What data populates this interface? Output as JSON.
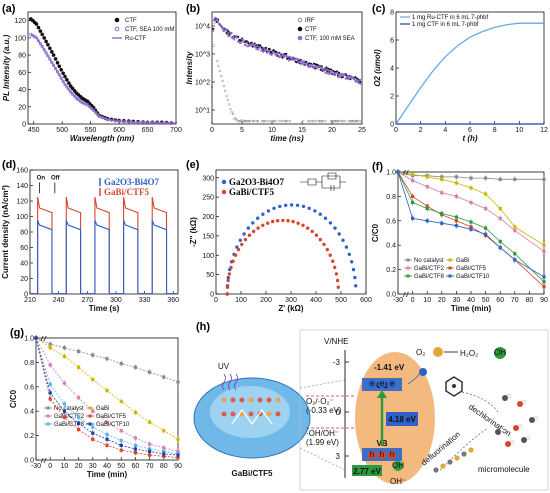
{
  "colors": {
    "black": "#111111",
    "blue": "#2f61c9",
    "lightblue": "#6aa8e6",
    "purple": "#8f6bd1",
    "red": "#d9452c",
    "orange": "#e8a33a",
    "yellow": "#c9b800",
    "green": "#2e9a3e",
    "gray": "#888888",
    "pink": "#d77db0",
    "cyan": "#5bb6e8",
    "darkblue": "#1f3fa6",
    "teal": "#2a8f7f"
  },
  "chart_data": [
    {
      "panel": "(a)",
      "type": "line",
      "ylabel": "PL Intensity (a.u.)",
      "xlabel": "Wavelength (nm)",
      "xlim": [
        440,
        700
      ],
      "ylim": [
        0,
        130
      ],
      "xticks": [
        "450",
        "500",
        "550",
        "600",
        "650",
        "700"
      ],
      "yticks": [
        "0",
        "20",
        "40",
        "60",
        "80",
        "100",
        "120"
      ],
      "series": [
        {
          "name": "CTF",
          "style": "marker",
          "color": "black",
          "x": [
            445,
            455,
            465,
            475,
            485,
            495,
            505,
            515,
            525,
            535,
            545,
            555,
            565,
            580,
            600,
            625,
            650,
            675,
            700
          ],
          "y": [
            122,
            116,
            104,
            92,
            80,
            67,
            55,
            44,
            36,
            30,
            26,
            19,
            10,
            6,
            4,
            3,
            2,
            2,
            1
          ]
        },
        {
          "name": "CTF, SEA 100 mM",
          "style": "marker-light",
          "color": "purple",
          "x": [
            445,
            455,
            465,
            475,
            485,
            495,
            505,
            515,
            525,
            535,
            545,
            555,
            565,
            580,
            600,
            625,
            650,
            675,
            700
          ],
          "y": [
            104,
            100,
            90,
            79,
            68,
            57,
            46,
            37,
            30,
            25,
            22,
            16,
            9,
            5,
            3,
            2,
            2,
            1,
            1
          ]
        },
        {
          "name": "Ru-CTF",
          "style": "line",
          "color": "purple",
          "x": [
            445,
            455,
            465,
            475,
            485,
            495,
            505,
            515,
            525,
            535,
            545,
            555,
            565,
            580,
            600,
            625,
            650,
            675,
            700
          ],
          "y": [
            104,
            100,
            90,
            79,
            68,
            57,
            46,
            37,
            30,
            25,
            22,
            16,
            9,
            5,
            3,
            2,
            2,
            1,
            1
          ]
        }
      ]
    },
    {
      "panel": "(b)",
      "type": "scatter",
      "ylabel": "Intensity",
      "xlabel": "time (ns)",
      "xlim": [
        0,
        25
      ],
      "log_y": true,
      "xticks": [
        "0",
        "5",
        "10",
        "15",
        "20",
        "25"
      ],
      "yticks": [
        "10^4",
        "10^3",
        "10^2",
        "10^1"
      ],
      "series": [
        {
          "name": "IRF",
          "color": "gray"
        },
        {
          "name": "CTF",
          "color": "black"
        },
        {
          "name": "CTF, 100 mM SEA",
          "color": "purple"
        }
      ]
    },
    {
      "panel": "(c)",
      "type": "line",
      "ylabel": "O2 (umol)",
      "xlabel": "t (h)",
      "xlim": [
        0,
        12
      ],
      "ylim": [
        0,
        8
      ],
      "xticks": [
        "0",
        "2",
        "4",
        "6",
        "8",
        "10",
        "12"
      ],
      "yticks": [
        "0",
        "2",
        "4",
        "6",
        "8"
      ],
      "series": [
        {
          "name": "1 mg Ru-CTF in 6 mL 7-phbf",
          "color": "lightblue",
          "x": [
            0,
            1,
            2,
            3,
            4,
            5,
            6,
            7,
            8,
            9,
            10,
            11,
            12
          ],
          "y": [
            0,
            1.3,
            2.6,
            3.8,
            4.8,
            5.6,
            6.2,
            6.6,
            6.9,
            7.1,
            7.2,
            7.2,
            7.2
          ]
        },
        {
          "name": "1 mg CTF in 6 mL 7-phbf",
          "color": "darkblue",
          "x": [
            0,
            12
          ],
          "y": [
            0,
            0
          ]
        }
      ]
    },
    {
      "panel": "(d)",
      "type": "line",
      "ylabel": "Current density (nA/cm²)",
      "xlabel": "Time (s)",
      "xlim": [
        210,
        365
      ],
      "ylim": [
        0,
        160
      ],
      "xticks": [
        "210",
        "240",
        "270",
        "300",
        "330",
        "360"
      ],
      "yticks": [
        "0",
        "20",
        "40",
        "60",
        "80",
        "100",
        "120",
        "140",
        "160"
      ],
      "annotations": [
        "On",
        "Off"
      ],
      "series": [
        {
          "name": "Ga2O3-Bi4O7",
          "color": "blue"
        },
        {
          "name": "GaBi/CTF5",
          "color": "red"
        }
      ]
    },
    {
      "panel": "(e)",
      "type": "scatter",
      "ylabel": "-Z'' (kΩ)",
      "xlabel": "Z' (kΩ)",
      "xlim": [
        0,
        600
      ],
      "ylim": [
        0,
        320
      ],
      "xticks": [
        "0",
        "100",
        "200",
        "300",
        "400",
        "500",
        "600"
      ],
      "yticks": [
        "0",
        "50",
        "100",
        "150",
        "200",
        "250",
        "300"
      ],
      "series": [
        {
          "name": "Ga2O3-Bi4O7",
          "color": "blue"
        },
        {
          "name": "GaBi/CTF5",
          "color": "red"
        }
      ]
    },
    {
      "panel": "(f)",
      "type": "line",
      "ylabel": "C/C0",
      "xlabel": "Time (min)",
      "xlim": [
        -30,
        90
      ],
      "ylim": [
        0,
        1
      ],
      "xticks": [
        "-30",
        "0",
        "10",
        "20",
        "30",
        "40",
        "50",
        "60",
        "70",
        "80",
        "90"
      ],
      "yticks": [
        "0.0",
        "0.2",
        "0.4",
        "0.6",
        "0.8",
        "1.0"
      ],
      "series": [
        {
          "name": "No catalyst",
          "color": "gray",
          "values": [
            1.0,
            0.97,
            0.97,
            0.96,
            0.96,
            0.95,
            0.95,
            0.94,
            0.94,
            0.94
          ]
        },
        {
          "name": "GaBi",
          "color": "yellow",
          "values": [
            1.0,
            0.98,
            0.96,
            0.94,
            0.91,
            0.87,
            0.82,
            0.7,
            0.55,
            0.4
          ]
        },
        {
          "name": "GaBi/CTF2",
          "color": "pink",
          "values": [
            1.0,
            0.93,
            0.88,
            0.83,
            0.8,
            0.75,
            0.7,
            0.62,
            0.52,
            0.35
          ]
        },
        {
          "name": "GaBi/CTF5",
          "color": "red",
          "values": [
            1.0,
            0.8,
            0.72,
            0.65,
            0.6,
            0.55,
            0.48,
            0.38,
            0.28,
            0.06
          ]
        },
        {
          "name": "GaBi/CTF8",
          "color": "green",
          "values": [
            1.0,
            0.75,
            0.7,
            0.66,
            0.63,
            0.59,
            0.54,
            0.43,
            0.33,
            0.1
          ]
        },
        {
          "name": "GaBi/CTF10",
          "color": "blue",
          "values": [
            1.0,
            0.62,
            0.6,
            0.58,
            0.56,
            0.53,
            0.49,
            0.38,
            0.28,
            0.14
          ]
        }
      ],
      "x": [
        -30,
        0,
        10,
        20,
        30,
        40,
        50,
        60,
        70,
        90
      ]
    },
    {
      "panel": "(g)",
      "type": "line",
      "ylabel": "C/C0",
      "xlabel": "Time (min)",
      "xlim": [
        -30,
        90
      ],
      "ylim": [
        0,
        1
      ],
      "xticks": [
        "-30",
        "0",
        "10",
        "20",
        "30",
        "40",
        "50",
        "60",
        "70",
        "80",
        "90"
      ],
      "yticks": [
        "0.0",
        "0.2",
        "0.4",
        "0.6",
        "0.8",
        "1.0"
      ],
      "x": [
        -30,
        0,
        10,
        20,
        30,
        40,
        50,
        60,
        70,
        80,
        90
      ],
      "series": [
        {
          "name": "No catalyst",
          "color": "gray",
          "values": [
            1.0,
            0.95,
            0.92,
            0.89,
            0.86,
            0.83,
            0.79,
            0.76,
            0.72,
            0.68,
            0.64
          ]
        },
        {
          "name": "GaBi",
          "color": "yellow",
          "values": [
            1.0,
            0.92,
            0.85,
            0.76,
            0.66,
            0.57,
            0.48,
            0.39,
            0.31,
            0.24,
            0.17
          ]
        },
        {
          "name": "GaBi/CTF2",
          "color": "pink",
          "values": [
            1.0,
            0.78,
            0.63,
            0.51,
            0.4,
            0.31,
            0.24,
            0.18,
            0.13,
            0.1,
            0.07
          ]
        },
        {
          "name": "GaBi/CTF5",
          "color": "red",
          "values": [
            1.0,
            0.5,
            0.35,
            0.25,
            0.17,
            0.12,
            0.08,
            0.06,
            0.04,
            0.03,
            0.02
          ]
        },
        {
          "name": "GaBi/CTF8",
          "color": "cyan",
          "values": [
            1.0,
            0.62,
            0.46,
            0.35,
            0.27,
            0.21,
            0.16,
            0.12,
            0.09,
            0.07,
            0.05
          ]
        },
        {
          "name": "GaBi/CTF10",
          "color": "darkblue",
          "values": [
            1.0,
            0.55,
            0.4,
            0.3,
            0.22,
            0.17,
            0.12,
            0.09,
            0.07,
            0.05,
            0.04
          ]
        }
      ]
    }
  ],
  "panels": {
    "a": "(a)",
    "b": "(b)",
    "c": "(c)",
    "d": "(d)",
    "e": "(e)",
    "f": "(f)",
    "g": "(g)",
    "h": "(h)"
  },
  "scheme": {
    "axis_title": "V/NHE",
    "ticks": [
      "-3",
      "0",
      "3"
    ],
    "uv": "UV",
    "catalyst": "GaBi/CTF5",
    "e1": "-1.41 eV",
    "cb": "CB",
    "gap": "4.18 eV",
    "vb": "VB",
    "e2": "2.77 eV",
    "couple1": "O₂/·O₂⁻",
    "couple1v": "(-0.33 eV)",
    "couple2": "·OH/OH⁻",
    "couple2v": "(1.99 eV)",
    "o2": "O₂",
    "h2o2": "H₂O₂",
    "oh": "OH",
    "ohm": "OH⁻",
    "dechlorination": "dechlorination",
    "defluorination": "defluorination",
    "micromolecule": "micromolecule",
    "e": "e",
    "h": "h"
  }
}
